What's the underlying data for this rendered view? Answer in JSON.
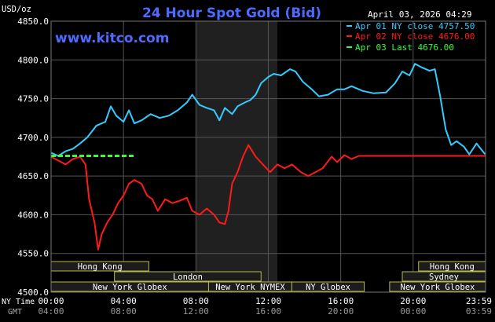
{
  "header": {
    "y_unit": "USD/oz",
    "title": "24 Hour Spot Gold (Bid)",
    "date": "April 03, 2026 04:29",
    "watermark": "www.kitco.com"
  },
  "legend": [
    {
      "text": "Apr 01 NY close 4757.50",
      "color": "#33ccff"
    },
    {
      "text": "Apr 02 NY close 4676.00",
      "color": "#ff1a1a"
    },
    {
      "text": "Apr 03 Last 4676.00",
      "color": "#33ff33"
    }
  ],
  "sessions": {
    "row1": [
      "Hong Kong",
      "Hong Kong"
    ],
    "row2": [
      "London",
      "Sydney"
    ],
    "row3": [
      "New York Globex",
      "New York NYMEX",
      "NY Globex",
      "New York Globex"
    ]
  },
  "bottom": {
    "ny_label": "NY Time",
    "gmt_label": "GMT",
    "ny_ticks": [
      "00:00",
      "04:00",
      "08:00",
      "12:00",
      "16:00",
      "20:00",
      "23:59"
    ],
    "gmt_ticks": [
      "04:00",
      "08:00",
      "12:00",
      "16:00",
      "20:00",
      "00:00",
      "03:59"
    ]
  },
  "colors": {
    "grid": "#555555",
    "axis_text": "#ffffff",
    "title": "#4d6bff",
    "session_fill": "#1c1c1c",
    "session_border": "#b8b84a",
    "nymex_shade": "#202020"
  },
  "chart_data": {
    "type": "line",
    "x_unit": "hours (NY time)",
    "ylim": [
      4500,
      4850
    ],
    "yticks": [
      "4850.0",
      "4800.0",
      "4750.0",
      "4700.0",
      "4650.0",
      "4600.0",
      "4550.0",
      "4500.0"
    ],
    "yticks_values": [
      4850,
      4800,
      4750,
      4700,
      4650,
      4600,
      4550,
      4500
    ],
    "grid": true,
    "shaded_x_range": [
      8,
      12.5
    ],
    "series": [
      {
        "name": "Apr 01",
        "color": "#33ccff",
        "points": [
          [
            0,
            4680
          ],
          [
            0.4,
            4676
          ],
          [
            0.8,
            4682
          ],
          [
            1.2,
            4685
          ],
          [
            1.6,
            4692
          ],
          [
            2,
            4700
          ],
          [
            2.5,
            4715
          ],
          [
            3,
            4720
          ],
          [
            3.3,
            4740
          ],
          [
            3.6,
            4728
          ],
          [
            4,
            4720
          ],
          [
            4.3,
            4735
          ],
          [
            4.6,
            4718
          ],
          [
            5,
            4722
          ],
          [
            5.5,
            4730
          ],
          [
            6,
            4725
          ],
          [
            6.5,
            4728
          ],
          [
            7,
            4735
          ],
          [
            7.5,
            4745
          ],
          [
            7.8,
            4755
          ],
          [
            8.2,
            4742
          ],
          [
            8.6,
            4738
          ],
          [
            9,
            4735
          ],
          [
            9.3,
            4722
          ],
          [
            9.6,
            4738
          ],
          [
            10,
            4730
          ],
          [
            10.3,
            4740
          ],
          [
            10.7,
            4745
          ],
          [
            11,
            4748
          ],
          [
            11.3,
            4755
          ],
          [
            11.6,
            4770
          ],
          [
            12,
            4778
          ],
          [
            12.3,
            4782
          ],
          [
            12.7,
            4780
          ],
          [
            13.2,
            4788
          ],
          [
            13.5,
            4785
          ],
          [
            13.9,
            4772
          ],
          [
            14.4,
            4762
          ],
          [
            14.8,
            4753
          ],
          [
            15.3,
            4755
          ],
          [
            15.8,
            4762
          ],
          [
            16.2,
            4762
          ],
          [
            16.6,
            4766
          ],
          [
            17.2,
            4760
          ],
          [
            17.8,
            4757
          ],
          [
            18.5,
            4758
          ],
          [
            19,
            4770
          ],
          [
            19.4,
            4785
          ],
          [
            19.8,
            4780
          ],
          [
            20.1,
            4795
          ],
          [
            20.5,
            4790
          ],
          [
            20.9,
            4786
          ],
          [
            21.2,
            4788
          ],
          [
            21.5,
            4752
          ],
          [
            21.8,
            4710
          ],
          [
            22.1,
            4690
          ],
          [
            22.4,
            4695
          ],
          [
            22.8,
            4688
          ],
          [
            23.1,
            4678
          ],
          [
            23.5,
            4692
          ],
          [
            23.98,
            4678
          ]
        ]
      },
      {
        "name": "Apr 02",
        "color": "#ff1a1a",
        "points": [
          [
            0,
            4675
          ],
          [
            0.4,
            4670
          ],
          [
            0.8,
            4665
          ],
          [
            1.2,
            4672
          ],
          [
            1.6,
            4675
          ],
          [
            1.9,
            4665
          ],
          [
            2.1,
            4620
          ],
          [
            2.4,
            4590
          ],
          [
            2.6,
            4555
          ],
          [
            2.8,
            4575
          ],
          [
            3.1,
            4590
          ],
          [
            3.4,
            4600
          ],
          [
            3.7,
            4615
          ],
          [
            4,
            4625
          ],
          [
            4.3,
            4640
          ],
          [
            4.6,
            4645
          ],
          [
            5,
            4640
          ],
          [
            5.3,
            4625
          ],
          [
            5.6,
            4620
          ],
          [
            5.9,
            4605
          ],
          [
            6.3,
            4620
          ],
          [
            6.7,
            4615
          ],
          [
            7.1,
            4618
          ],
          [
            7.5,
            4622
          ],
          [
            7.8,
            4605
          ],
          [
            8.2,
            4600
          ],
          [
            8.6,
            4608
          ],
          [
            9,
            4600
          ],
          [
            9.3,
            4590
          ],
          [
            9.6,
            4588
          ],
          [
            9.8,
            4605
          ],
          [
            10,
            4640
          ],
          [
            10.3,
            4655
          ],
          [
            10.6,
            4675
          ],
          [
            10.9,
            4690
          ],
          [
            11.3,
            4675
          ],
          [
            11.7,
            4665
          ],
          [
            12.1,
            4655
          ],
          [
            12.5,
            4665
          ],
          [
            12.9,
            4660
          ],
          [
            13.3,
            4665
          ],
          [
            13.8,
            4655
          ],
          [
            14.2,
            4650
          ],
          [
            14.6,
            4655
          ],
          [
            15,
            4660
          ],
          [
            15.5,
            4675
          ],
          [
            15.8,
            4668
          ],
          [
            16.2,
            4677
          ],
          [
            16.6,
            4672
          ],
          [
            17,
            4676
          ],
          [
            17.5,
            4676
          ],
          [
            23.98,
            4676
          ]
        ]
      },
      {
        "name": "Apr 03",
        "color": "#33ff33",
        "dashed": true,
        "points": [
          [
            0,
            4676
          ],
          [
            4.6,
            4676
          ]
        ]
      }
    ]
  }
}
